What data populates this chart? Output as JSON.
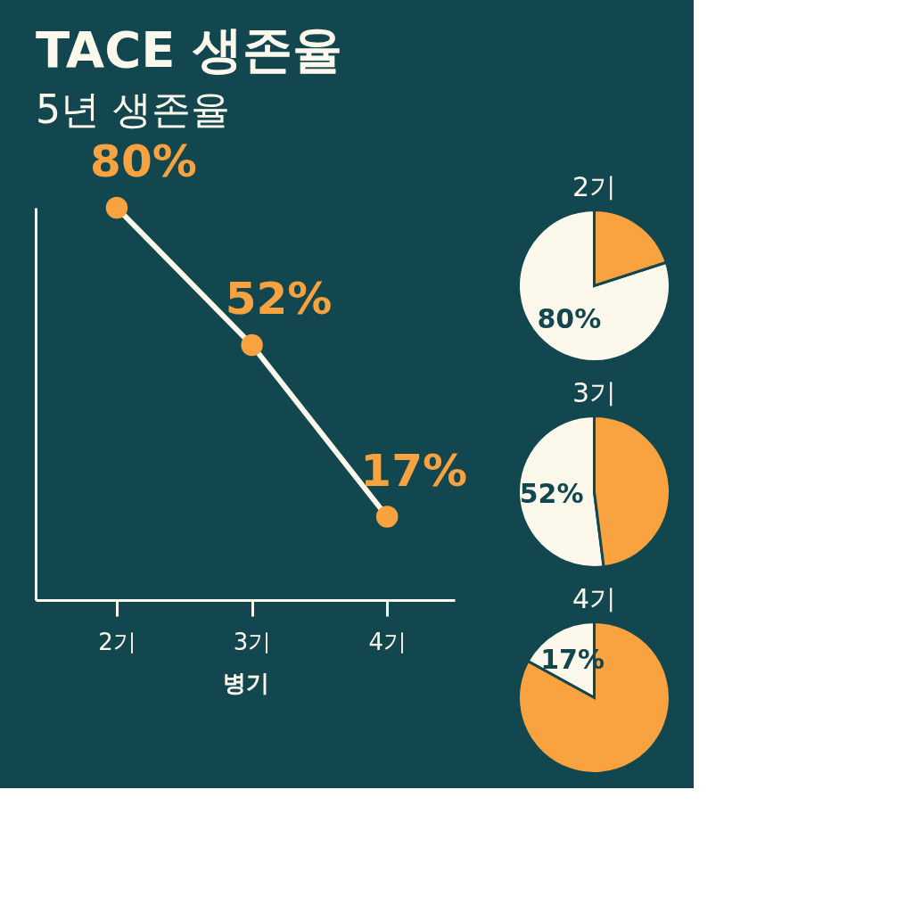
{
  "chart_data": [
    {
      "type": "line",
      "title": "TACE 생존율",
      "subtitle": "5년 생존율",
      "xlabel": "병기",
      "categories": [
        "2기",
        "3기",
        "4기"
      ],
      "series": [
        {
          "color": "#f9a340",
          "values": [
            80,
            52,
            17
          ],
          "value_labels": [
            "80%",
            "52%",
            "17%"
          ]
        }
      ],
      "marker": "circle",
      "grid": false,
      "tick_labels": "x"
    },
    {
      "type": "pie",
      "title": "2기",
      "categories": [
        null,
        null
      ],
      "values": [
        80,
        20
      ],
      "colors": [
        "#fdf8ec",
        "#f9a340"
      ],
      "value_labels": [
        "80%",
        null
      ]
    },
    {
      "type": "pie",
      "title": "3기",
      "categories": [
        null,
        null
      ],
      "values": [
        52,
        48
      ],
      "colors": [
        "#fdf8ec",
        "#f9a340"
      ],
      "value_labels": [
        "52%",
        null
      ]
    },
    {
      "type": "pie",
      "title": "4기",
      "categories": [
        null,
        null
      ],
      "values": [
        17,
        83
      ],
      "colors": [
        "#fdf8ec",
        "#f9a340"
      ],
      "value_labels": [
        "17%",
        null
      ]
    }
  ]
}
